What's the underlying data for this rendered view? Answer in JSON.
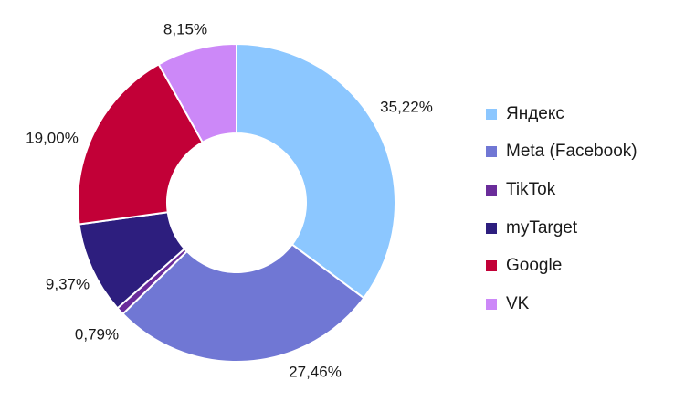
{
  "chart_data": {
    "type": "pie",
    "variant": "donut",
    "legend_position": "right",
    "categories": [
      "Яндекс",
      "Meta (Facebook)",
      "TikTok",
      "myTarget",
      "Google",
      "VK"
    ],
    "values": [
      35.22,
      27.46,
      0.79,
      9.37,
      19.0,
      8.15
    ],
    "value_labels": [
      "35,22%",
      "27,46%",
      "0,79%",
      "9,37%",
      "19,00%",
      "8,15%"
    ],
    "colors": [
      "#8cc7ff",
      "#7077d4",
      "#6a2c9a",
      "#2d1e7e",
      "#c20037",
      "#cc88f8"
    ]
  }
}
